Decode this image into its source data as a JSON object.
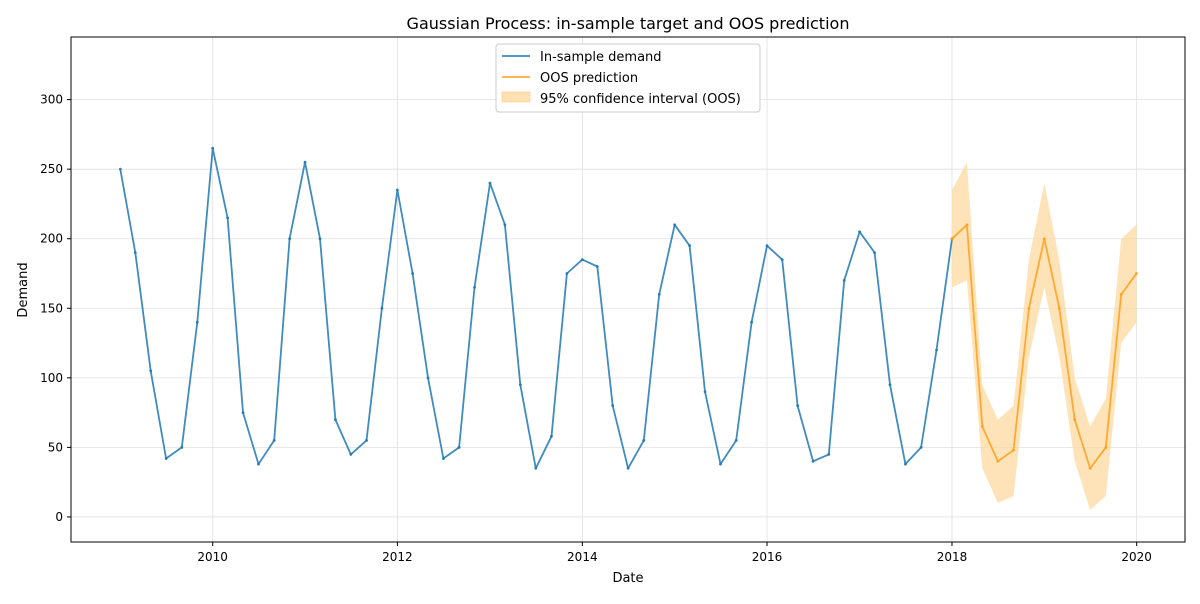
{
  "chart_data": {
    "type": "line",
    "title": "Gaussian Process: in-sample target and OOS prediction",
    "xlabel": "Date",
    "ylabel": "Demand",
    "xlim": [
      "2008-06-20",
      "2020-07-10"
    ],
    "ylim": [
      -18,
      345
    ],
    "x_ticks": [
      "2010",
      "2012",
      "2014",
      "2016",
      "2018",
      "2020"
    ],
    "y_ticks": [
      "0",
      "50",
      "100",
      "150",
      "200",
      "250",
      "300"
    ],
    "grid": true,
    "legend_position": "top-center",
    "colors": {
      "in_sample": "#1f77b4",
      "oos": "#ff9f1a",
      "band": "#ffd9a0"
    },
    "series": [
      {
        "name": "In-sample demand",
        "color": "#1f77b4",
        "x": [
          "2009-01-01",
          "2009-03-01",
          "2009-05-01",
          "2009-07-01",
          "2009-09-01",
          "2009-11-01",
          "2010-01-01",
          "2010-03-01",
          "2010-05-01",
          "2010-07-01",
          "2010-09-01",
          "2010-11-01",
          "2011-01-01",
          "2011-03-01",
          "2011-05-01",
          "2011-07-01",
          "2011-09-01",
          "2011-11-01",
          "2012-01-01",
          "2012-03-01",
          "2012-05-01",
          "2012-07-01",
          "2012-09-01",
          "2012-11-01",
          "2013-01-01",
          "2013-03-01",
          "2013-05-01",
          "2013-07-01",
          "2013-09-01",
          "2013-11-01",
          "2014-01-01",
          "2014-03-01",
          "2014-05-01",
          "2014-07-01",
          "2014-09-01",
          "2014-11-01",
          "2015-01-01",
          "2015-03-01",
          "2015-05-01",
          "2015-07-01",
          "2015-09-01",
          "2015-11-01",
          "2016-01-01",
          "2016-03-01",
          "2016-05-01",
          "2016-07-01",
          "2016-09-01",
          "2016-11-01",
          "2017-01-01",
          "2017-03-01",
          "2017-05-01",
          "2017-07-01",
          "2017-09-01",
          "2017-11-01",
          "2018-01-01"
        ],
        "values": [
          250,
          190,
          105,
          42,
          50,
          140,
          265,
          215,
          75,
          38,
          55,
          200,
          255,
          200,
          70,
          45,
          55,
          150,
          235,
          175,
          100,
          42,
          50,
          165,
          240,
          210,
          95,
          35,
          58,
          175,
          185,
          180,
          80,
          35,
          55,
          160,
          210,
          195,
          90,
          38,
          55,
          140,
          195,
          185,
          80,
          40,
          45,
          170,
          205,
          190,
          95,
          38,
          50,
          120,
          200
        ]
      },
      {
        "name": "OOS prediction",
        "color": "#ff9f1a",
        "x": [
          "2018-01-01",
          "2018-03-01",
          "2018-05-01",
          "2018-07-01",
          "2018-09-01",
          "2018-11-01",
          "2019-01-01",
          "2019-03-01",
          "2019-05-01",
          "2019-07-01",
          "2019-09-01",
          "2019-11-01",
          "2019-12-31"
        ],
        "values": [
          200,
          210,
          65,
          40,
          48,
          150,
          200,
          150,
          70,
          35,
          50,
          160,
          175
        ],
        "lower": [
          165,
          170,
          35,
          10,
          15,
          115,
          165,
          115,
          40,
          5,
          15,
          125,
          140
        ],
        "upper": [
          235,
          255,
          95,
          70,
          80,
          185,
          240,
          185,
          100,
          65,
          85,
          200,
          210
        ]
      }
    ],
    "legend": [
      {
        "label": "In-sample demand",
        "kind": "line",
        "color": "#1f77b4"
      },
      {
        "label": "OOS prediction",
        "kind": "line",
        "color": "#ff9f1a"
      },
      {
        "label": "95% confidence interval (OOS)",
        "kind": "patch",
        "color": "#ffd9a0"
      }
    ]
  }
}
